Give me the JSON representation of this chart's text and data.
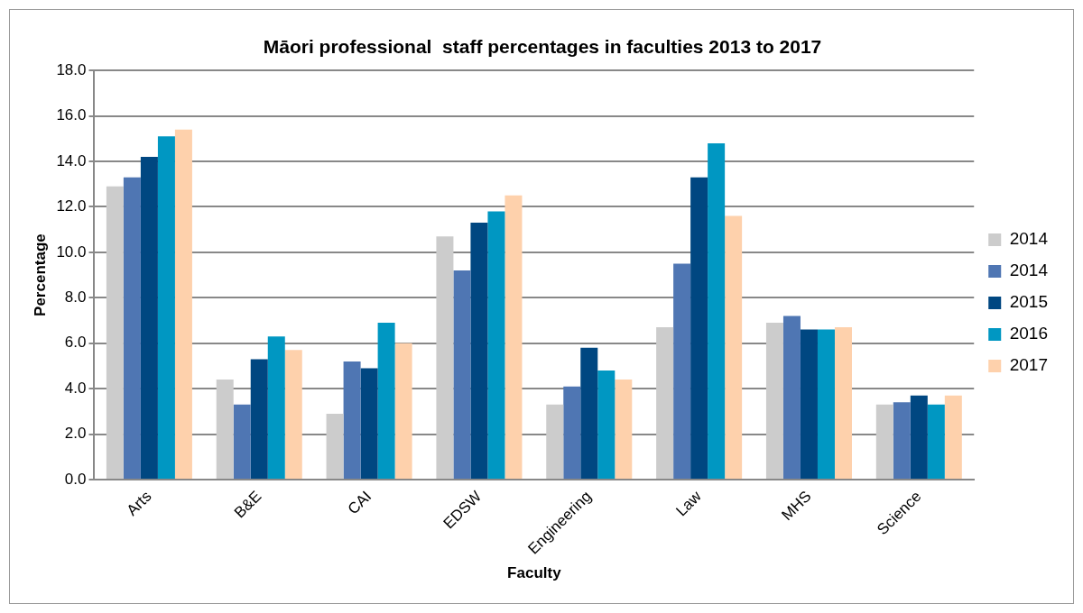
{
  "chart_data": {
    "type": "bar",
    "title": "Māori professional  staff percentages in faculties 2013 to 2017",
    "xlabel": "Faculty",
    "ylabel": "Percentage",
    "categories": [
      "Arts",
      "B&E",
      "CAI",
      "EDSW",
      "Engineering",
      "Law",
      "MHS",
      "Science"
    ],
    "series": [
      {
        "name": "2014",
        "color": "#cccccc",
        "values": [
          12.9,
          4.4,
          2.9,
          10.7,
          3.3,
          6.7,
          6.9,
          3.3
        ]
      },
      {
        "name": "2014",
        "color": "#4f76b3",
        "values": [
          13.3,
          3.3,
          5.2,
          9.2,
          4.1,
          9.5,
          7.2,
          3.4
        ]
      },
      {
        "name": "2015",
        "color": "#004781",
        "values": [
          14.2,
          5.3,
          4.9,
          11.3,
          5.8,
          13.3,
          6.6,
          3.7
        ]
      },
      {
        "name": "2016",
        "color": "#0097c2",
        "values": [
          15.1,
          6.3,
          6.9,
          11.8,
          4.8,
          14.8,
          6.6,
          3.3
        ]
      },
      {
        "name": "2017",
        "color": "#fed1ac",
        "values": [
          15.4,
          5.7,
          6.0,
          12.5,
          4.4,
          11.6,
          6.7,
          3.7
        ]
      }
    ],
    "ylim": [
      0,
      18
    ],
    "yticks": [
      {
        "value": 0,
        "label": "0.0"
      },
      {
        "value": 2,
        "label": "2.0"
      },
      {
        "value": 4,
        "label": "4.0"
      },
      {
        "value": 6,
        "label": "6.0"
      },
      {
        "value": 8,
        "label": "8.0"
      },
      {
        "value": 10,
        "label": "10.0"
      },
      {
        "value": 12,
        "label": "12.0"
      },
      {
        "value": 14,
        "label": "14.0"
      },
      {
        "value": 16,
        "label": "16.0"
      },
      {
        "value": 18,
        "label": "18.0"
      }
    ],
    "grid": "y",
    "legend": "right"
  }
}
